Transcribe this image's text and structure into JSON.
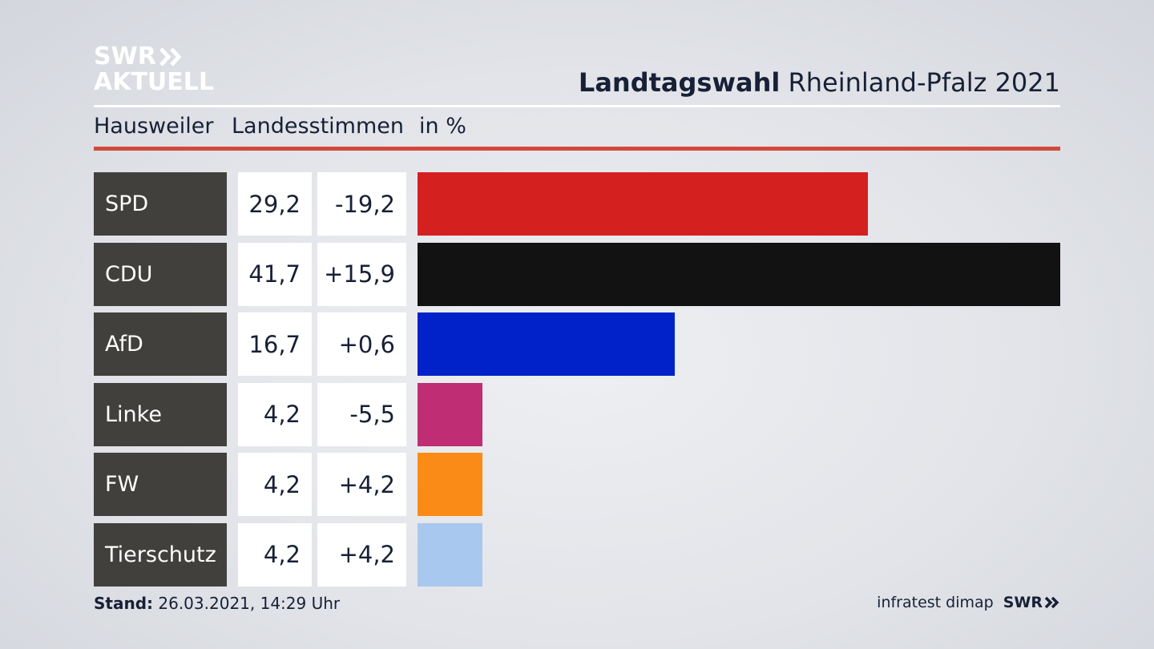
{
  "brand": {
    "line1": "SWR",
    "line2": "AKTUELL",
    "footer_logo": "SWR",
    "source": "infratest dimap"
  },
  "header": {
    "title_bold": "Landtagswahl",
    "title_rest": "Rheinland-Pfalz 2021",
    "location": "Hausweiler",
    "vote_type": "Landesstimmen",
    "unit": "in %"
  },
  "footer": {
    "stand_label": "Stand:",
    "stand_value": "26.03.2021, 14:29 Uhr"
  },
  "colors": {
    "accent_rule": "#d2493a",
    "party_box": "#41403d"
  },
  "chart_data": {
    "type": "bar",
    "orientation": "horizontal",
    "categories": [
      "SPD",
      "CDU",
      "AfD",
      "Linke",
      "FW",
      "Tierschutz"
    ],
    "values": [
      29.2,
      41.7,
      16.7,
      4.2,
      4.2,
      4.2
    ],
    "labels": [
      "29,2",
      "41,7",
      "16,7",
      "4,2",
      "4,2",
      "4,2"
    ],
    "changes": [
      "-19,2",
      "+15,9",
      "+0,6",
      "-5,5",
      "+4,2",
      "+4,2"
    ],
    "colors": [
      "#d52020",
      "#121212",
      "#0022c8",
      "#bf2d74",
      "#fb8b17",
      "#a9c8ef"
    ],
    "xlim": [
      0,
      41.7
    ],
    "grid": false
  }
}
